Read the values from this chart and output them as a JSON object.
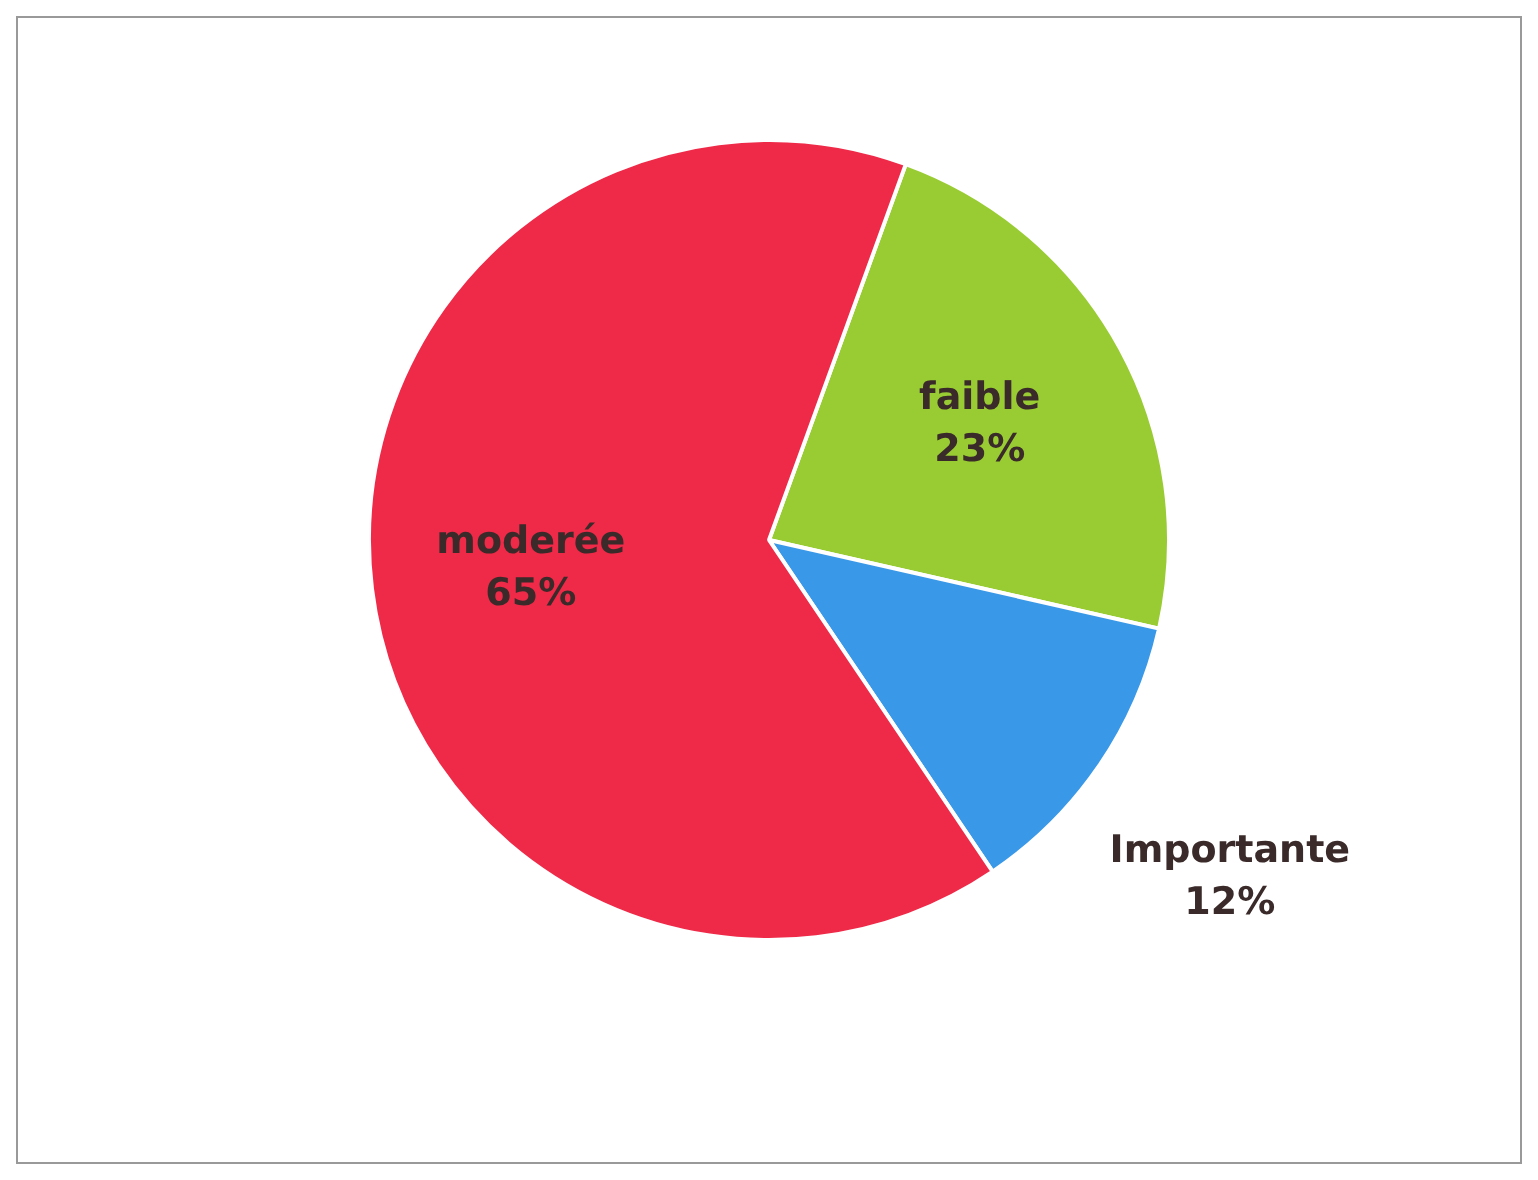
{
  "chart_data": {
    "type": "pie",
    "categories": [
      "faible",
      "Importante",
      "moderée"
    ],
    "values": [
      23,
      12,
      65
    ],
    "colors": [
      "#99cc33",
      "#3a98e8",
      "#ee2a48"
    ],
    "value_labels": [
      "23%",
      "12%",
      "65%"
    ],
    "legend": false
  }
}
